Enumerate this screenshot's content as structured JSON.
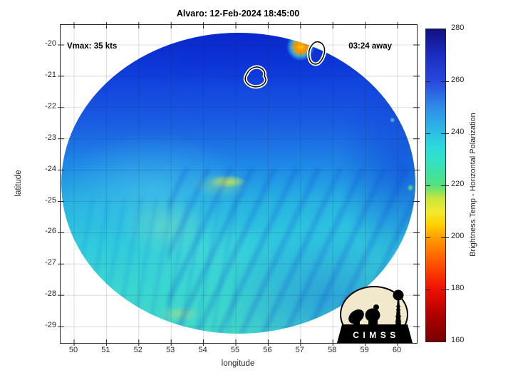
{
  "figure": {
    "title": "Alvaro: 12-Feb-2024 18:45:00",
    "annotations": {
      "vmax": "Vmax: 35 kts",
      "eta": "03:24 away"
    },
    "logo": {
      "text": "CIMSS"
    }
  },
  "chart_data": {
    "type": "heatmap",
    "title": "Alvaro: 12-Feb-2024 18:45:00",
    "xlabel": "longitude",
    "ylabel": "latitude",
    "xlim": [
      49.6,
      60.6
    ],
    "ylim": [
      -29.5,
      -19.4
    ],
    "x_ticks": [
      50,
      51,
      52,
      53,
      54,
      55,
      56,
      57,
      58,
      59,
      60
    ],
    "y_ticks": [
      -20,
      -21,
      -22,
      -23,
      -24,
      -25,
      -26,
      -27,
      -28,
      -29
    ],
    "grid": true,
    "annotations": [
      {
        "text": "Vmax: 35 kts",
        "position": "top-left"
      },
      {
        "text": "03:24 away",
        "position": "top-right"
      }
    ],
    "colorbar": {
      "label": "Brightness Temp - Horizontal Polarization",
      "min": 160,
      "max": 280,
      "ticks": [
        280,
        260,
        240,
        220,
        200,
        180,
        160
      ],
      "colormap_stops": [
        {
          "value": 160,
          "color": "#780000"
        },
        {
          "value": 170,
          "color": "#ae0000"
        },
        {
          "value": 180,
          "color": "#ee1000"
        },
        {
          "value": 190,
          "color": "#ff5200"
        },
        {
          "value": 200,
          "color": "#ff9e00"
        },
        {
          "value": 205,
          "color": "#ffd200"
        },
        {
          "value": 210,
          "color": "#f0ea30"
        },
        {
          "value": 215,
          "color": "#c8e63c"
        },
        {
          "value": 220,
          "color": "#55e07f"
        },
        {
          "value": 225,
          "color": "#3fe0a4"
        },
        {
          "value": 230,
          "color": "#31e2c8"
        },
        {
          "value": 235,
          "color": "#2ed8dc"
        },
        {
          "value": 240,
          "color": "#2bc0e4"
        },
        {
          "value": 250,
          "color": "#2f8ce8"
        },
        {
          "value": 260,
          "color": "#2849de"
        },
        {
          "value": 270,
          "color": "#1c2cc0"
        },
        {
          "value": 280,
          "color": "#101080"
        }
      ]
    },
    "field_summary": [
      {
        "region": "north of swath (lat -20 to -23)",
        "approx_tb_K": 262
      },
      {
        "region": "central swath (lat -24 to -26)",
        "approx_tb_K": 240
      },
      {
        "region": "warm spot near 54.8E 24.3S",
        "approx_tb_K": 213
      },
      {
        "region": "south-west swath (lat -26 to -29)",
        "approx_tb_K": 236
      },
      {
        "region": "south-east swath",
        "approx_tb_K": 250
      },
      {
        "region": "hot spot near 57.1E 20.0S (swath edge)",
        "approx_tb_K": 200
      }
    ],
    "overlays": {
      "coastline_outlines": 2
    }
  }
}
